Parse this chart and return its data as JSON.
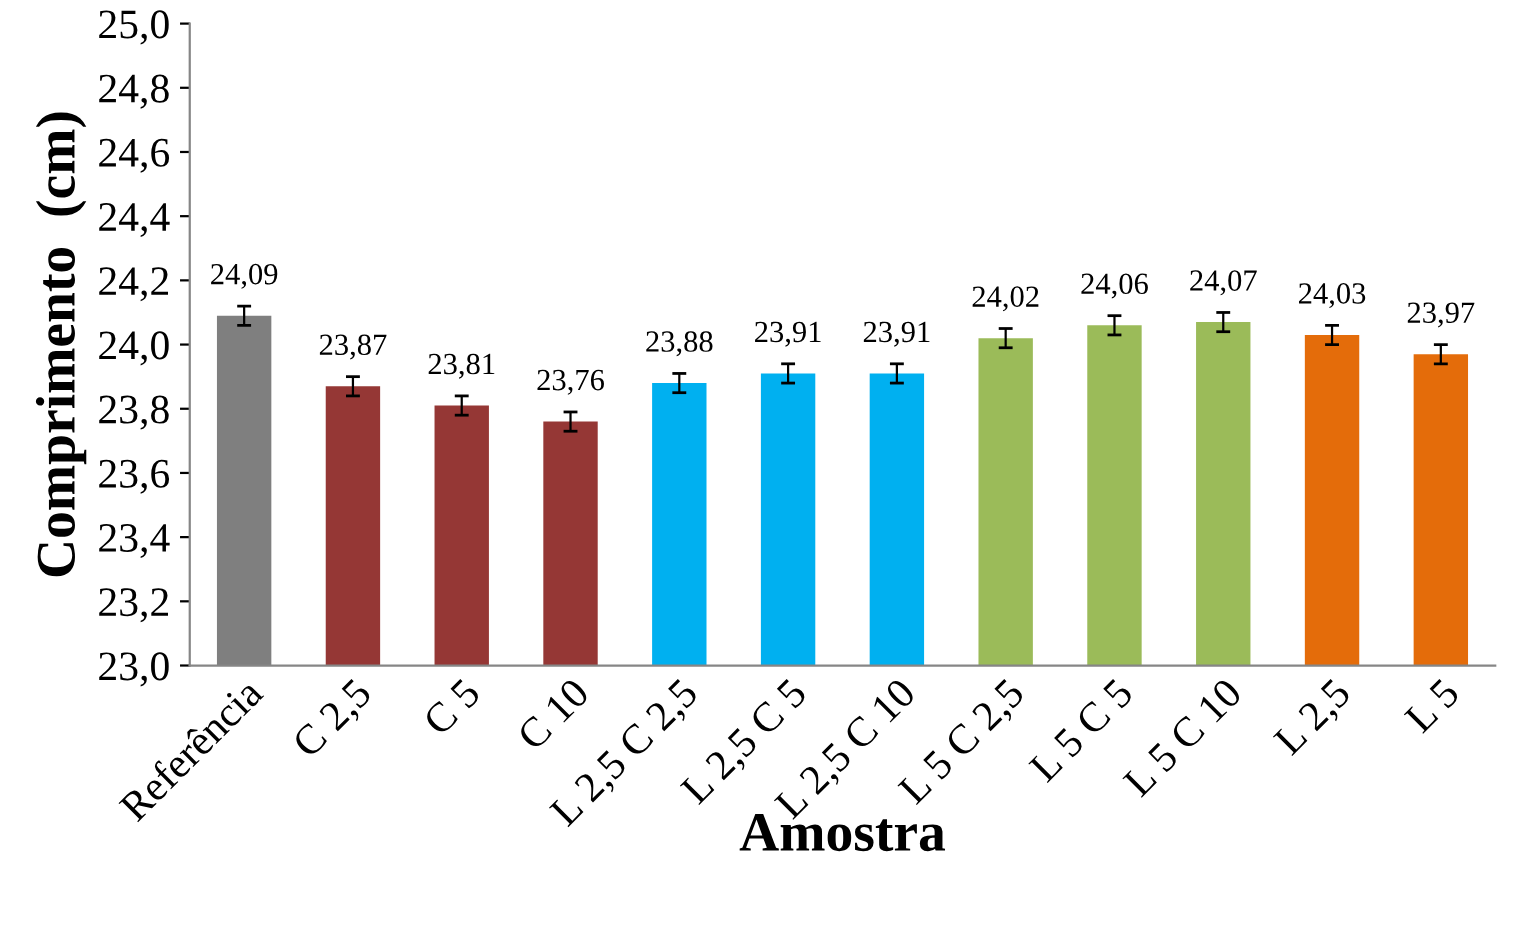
{
  "chart_data": {
    "type": "bar",
    "xlabel": "Amostra",
    "ylabel": "Comprimento  (cm)",
    "categories": [
      "Referência",
      "C 2,5",
      "C 5",
      "C 10",
      "L 2,5 C 2,5",
      "L 2,5 C 5",
      "L 2,5 C 10",
      "L 5 C 2,5",
      "L 5 C 5",
      "L 5 C 10",
      "L 2,5",
      "L 5"
    ],
    "values": [
      24.09,
      23.87,
      23.81,
      23.76,
      23.88,
      23.91,
      23.91,
      24.02,
      24.06,
      24.07,
      24.03,
      23.97
    ],
    "value_labels": [
      "24,09",
      "23,87",
      "23,81",
      "23,76",
      "23,88",
      "23,91",
      "23,91",
      "24,02",
      "24,06",
      "24,07",
      "24,03",
      "23,97"
    ],
    "errors": [
      0.03,
      0.03,
      0.03,
      0.03,
      0.03,
      0.03,
      0.03,
      0.03,
      0.03,
      0.03,
      0.03,
      0.03
    ],
    "colors": [
      "#7f7f7f",
      "#953735",
      "#953735",
      "#953735",
      "#00b0f0",
      "#00b0f0",
      "#00b0f0",
      "#9bbb59",
      "#9bbb59",
      "#9bbb59",
      "#e46c0a",
      "#e46c0a"
    ],
    "ylim": [
      23.0,
      25.0
    ],
    "yticks": [
      {
        "value": 23.0,
        "label": "23,0"
      },
      {
        "value": 23.2,
        "label": "23,2"
      },
      {
        "value": 23.4,
        "label": "23,4"
      },
      {
        "value": 23.6,
        "label": "23,6"
      },
      {
        "value": 23.8,
        "label": "23,8"
      },
      {
        "value": 24.0,
        "label": "24,0"
      },
      {
        "value": 24.2,
        "label": "24,2"
      },
      {
        "value": 24.4,
        "label": "24,4"
      },
      {
        "value": 24.6,
        "label": "24,6"
      },
      {
        "value": 24.8,
        "label": "24,8"
      },
      {
        "value": 25.0,
        "label": "25,0"
      }
    ],
    "grid": false,
    "legend": false
  }
}
